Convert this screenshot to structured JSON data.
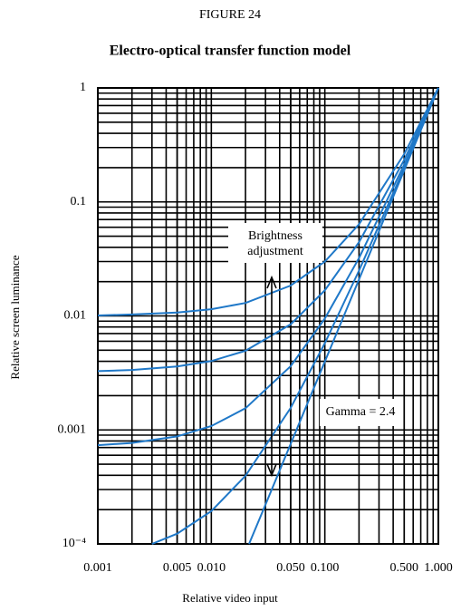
{
  "chart_data": {
    "type": "line",
    "title": "FIGURE 24",
    "subtitle": "Electro-optical transfer function model",
    "xlabel": "Relative video input",
    "ylabel": "Relative screen luminance",
    "xscale": "log",
    "yscale": "log",
    "grid": true,
    "xlim": [
      0.001,
      1
    ],
    "ylim": [
      0.0001,
      1
    ],
    "xticks": [
      0.001,
      0.005,
      {
        "value": 0.01,
        "label": "0.010"
      },
      {
        "value": 0.05,
        "label": "0.050"
      },
      {
        "value": 0.1,
        "label": "0.100"
      },
      {
        "value": 0.5,
        "label": "0.500"
      },
      {
        "value": 1,
        "label": "1.000"
      }
    ],
    "yticks": [
      {
        "value": 0.0001,
        "label": "10⁻⁴"
      },
      0.001,
      0.01,
      0.1,
      1
    ],
    "series": [
      {
        "color": "#1f78c8",
        "x": [
          0.001,
          0.002,
          0.005,
          0.01,
          0.02,
          0.05,
          0.1,
          0.2,
          0.5,
          1
        ],
        "values": [
          0.0101,
          0.0103,
          0.0107,
          0.01146,
          0.013,
          0.01846,
          0.03,
          0.0637,
          0.263,
          1
        ]
      },
      {
        "color": "#1f78c8",
        "x": [
          0.001,
          0.002,
          0.005,
          0.01,
          0.02,
          0.05,
          0.1,
          0.2,
          0.5,
          1
        ],
        "values": [
          0.00328,
          0.00336,
          0.0036,
          0.00402,
          0.00495,
          0.00843,
          0.0168,
          0.0444,
          0.2337,
          1
        ]
      },
      {
        "color": "#1f78c8",
        "x": [
          0.001,
          0.002,
          0.005,
          0.01,
          0.02,
          0.05,
          0.1,
          0.2,
          0.5,
          1
        ],
        "values": [
          0.000735,
          0.000769,
          0.000878,
          0.00108,
          0.00155,
          0.00362,
          0.0095,
          0.0322,
          0.2123,
          1
        ]
      },
      {
        "color": "#1f78c8",
        "x": [
          0.003,
          0.005,
          0.01,
          0.02,
          0.05,
          0.1,
          0.2,
          0.5,
          1
        ],
        "values": [
          0.0001,
          0.000123,
          0.000194,
          0.000396,
          0.00156,
          0.00577,
          0.025,
          0.198,
          1
        ]
      },
      {
        "color": "#1f78c8",
        "x": [
          0.0215,
          0.03,
          0.05,
          0.1,
          0.2,
          0.5,
          1
        ],
        "values": [
          0.0001,
          0.000221,
          0.000753,
          0.00398,
          0.0209,
          0.1895,
          1
        ]
      }
    ],
    "annotations": [
      {
        "lines": [
          "Brightness",
          "adjustment"
        ]
      },
      {
        "lines": [
          "Gamma = 2.4"
        ]
      }
    ]
  }
}
